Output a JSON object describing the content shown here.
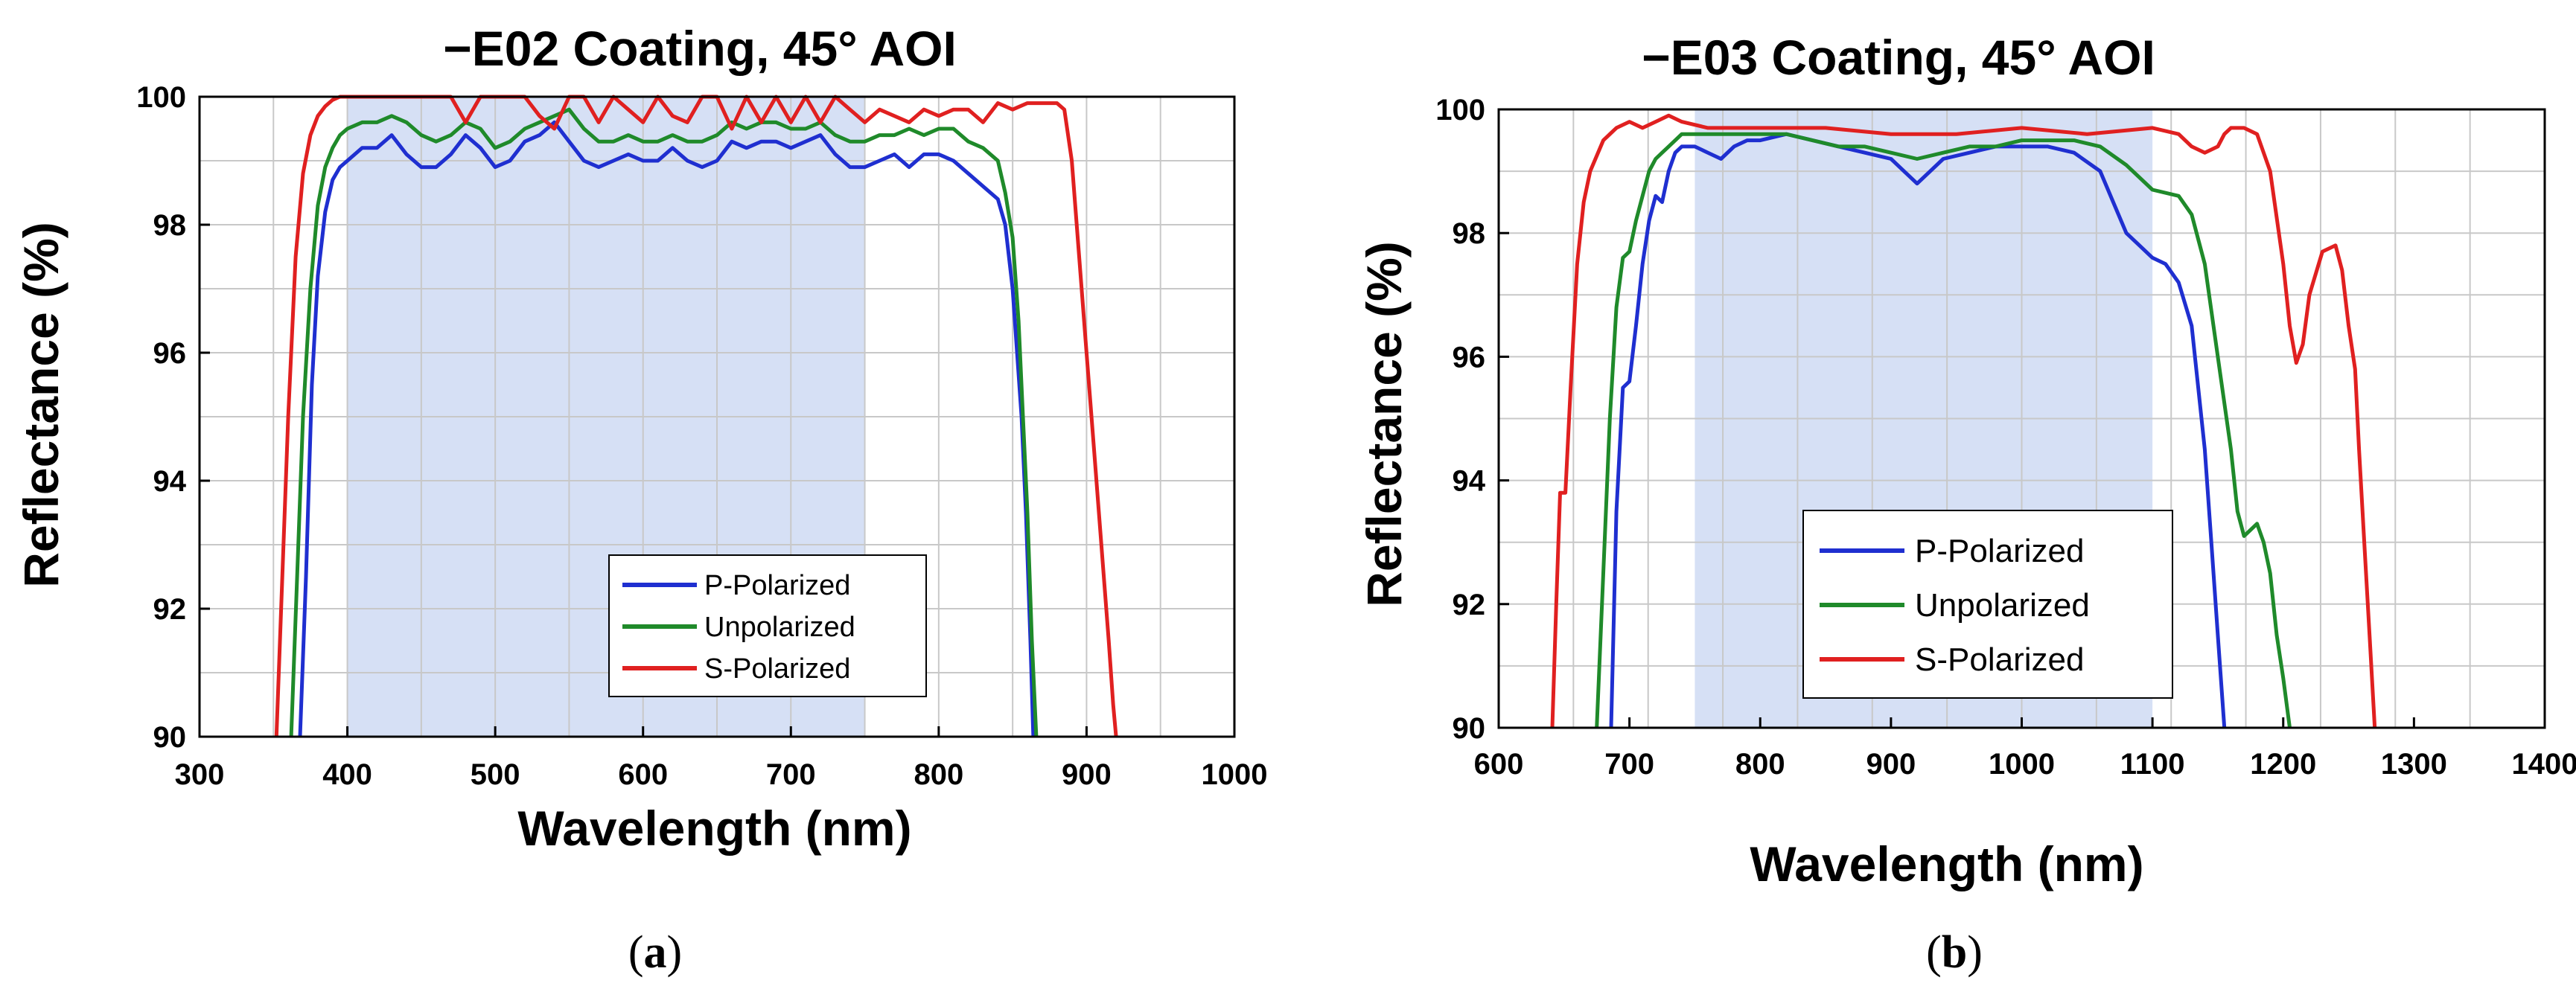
{
  "chart_data": [
    {
      "type": "line",
      "title": "−E02 Coating, 45° AOI",
      "xlabel": "Wavelength (nm)",
      "ylabel": "Reflectance (%)",
      "xlim": [
        300,
        1000
      ],
      "ylim": [
        90,
        100
      ],
      "xticks": [
        300,
        400,
        500,
        600,
        700,
        800,
        900,
        1000
      ],
      "yticks": [
        90,
        92,
        94,
        96,
        98,
        100
      ],
      "grid": true,
      "shaded_band": [
        400,
        750
      ],
      "legend_position": "bottom-center",
      "sublabel_open": "(",
      "sublabel_letter": "a",
      "sublabel_close": ")",
      "series": [
        {
          "name": "P-Polarized",
          "color": "#1f2fd0",
          "x": [
            368,
            372,
            376,
            380,
            385,
            390,
            395,
            400,
            410,
            420,
            430,
            440,
            450,
            460,
            470,
            480,
            490,
            500,
            510,
            520,
            530,
            540,
            550,
            560,
            570,
            580,
            590,
            600,
            610,
            620,
            630,
            640,
            650,
            660,
            670,
            680,
            690,
            700,
            710,
            720,
            730,
            740,
            750,
            760,
            770,
            780,
            790,
            800,
            810,
            820,
            830,
            840,
            845,
            850,
            853,
            856,
            859,
            862,
            864
          ],
          "values": [
            90,
            92.5,
            95.5,
            97.2,
            98.2,
            98.7,
            98.9,
            99.0,
            99.2,
            99.2,
            99.4,
            99.1,
            98.9,
            98.9,
            99.1,
            99.4,
            99.2,
            98.9,
            99.0,
            99.3,
            99.4,
            99.6,
            99.3,
            99.0,
            98.9,
            99.0,
            99.1,
            99.0,
            99.0,
            99.2,
            99.0,
            98.9,
            99.0,
            99.3,
            99.2,
            99.3,
            99.3,
            99.2,
            99.3,
            99.4,
            99.1,
            98.9,
            98.9,
            99.0,
            99.1,
            98.9,
            99.1,
            99.1,
            99.0,
            98.8,
            98.6,
            98.4,
            98.0,
            97.0,
            96.0,
            95.0,
            93.5,
            91.5,
            90
          ]
        },
        {
          "name": "Unpolarized",
          "color": "#1f8a2a",
          "x": [
            362,
            366,
            370,
            375,
            380,
            385,
            390,
            395,
            400,
            410,
            420,
            430,
            440,
            450,
            460,
            470,
            480,
            490,
            500,
            510,
            520,
            530,
            540,
            550,
            560,
            570,
            580,
            590,
            600,
            610,
            620,
            630,
            640,
            650,
            660,
            670,
            680,
            690,
            700,
            710,
            720,
            730,
            740,
            750,
            760,
            770,
            780,
            790,
            800,
            810,
            820,
            830,
            840,
            845,
            850,
            854,
            857,
            860,
            863,
            866
          ],
          "values": [
            90,
            92.5,
            95.0,
            97.0,
            98.3,
            98.9,
            99.2,
            99.4,
            99.5,
            99.6,
            99.6,
            99.7,
            99.6,
            99.4,
            99.3,
            99.4,
            99.6,
            99.5,
            99.2,
            99.3,
            99.5,
            99.6,
            99.7,
            99.8,
            99.5,
            99.3,
            99.3,
            99.4,
            99.3,
            99.3,
            99.4,
            99.3,
            99.3,
            99.4,
            99.6,
            99.5,
            99.6,
            99.6,
            99.5,
            99.5,
            99.6,
            99.4,
            99.3,
            99.3,
            99.4,
            99.4,
            99.5,
            99.4,
            99.5,
            99.5,
            99.3,
            99.2,
            99.0,
            98.5,
            97.8,
            96.5,
            95.0,
            93.5,
            91.5,
            90
          ]
        },
        {
          "name": "S-Polarized",
          "color": "#e02020",
          "x": [
            352,
            356,
            360,
            365,
            370,
            375,
            380,
            385,
            390,
            395,
            400,
            410,
            420,
            440,
            460,
            470,
            480,
            490,
            500,
            510,
            520,
            530,
            540,
            550,
            560,
            570,
            580,
            590,
            600,
            610,
            620,
            630,
            640,
            650,
            660,
            670,
            680,
            690,
            700,
            710,
            720,
            730,
            740,
            750,
            760,
            770,
            780,
            790,
            800,
            810,
            820,
            830,
            840,
            850,
            860,
            870,
            880,
            885,
            890,
            895,
            900,
            905,
            910,
            915,
            918,
            920
          ],
          "values": [
            90,
            92.5,
            95.0,
            97.5,
            98.8,
            99.4,
            99.7,
            99.85,
            99.95,
            100,
            100,
            100,
            100,
            100,
            100,
            100,
            99.6,
            100,
            100,
            100,
            100,
            99.7,
            99.5,
            100,
            100,
            99.6,
            100,
            99.8,
            99.6,
            100,
            99.7,
            99.6,
            100,
            100,
            99.5,
            100,
            99.6,
            100,
            99.6,
            100,
            99.6,
            100,
            99.8,
            99.6,
            99.8,
            99.7,
            99.6,
            99.8,
            99.7,
            99.8,
            99.8,
            99.6,
            99.9,
            99.8,
            99.9,
            99.9,
            99.9,
            99.8,
            99.0,
            97.5,
            96.0,
            94.5,
            93.0,
            91.5,
            90.5,
            90
          ]
        }
      ]
    },
    {
      "type": "line",
      "title": "−E03 Coating, 45° AOI",
      "xlabel": "Wavelength (nm)",
      "ylabel": "Reflectance (%)",
      "xlim": [
        600,
        1400
      ],
      "ylim": [
        90,
        100
      ],
      "xticks": [
        600,
        700,
        800,
        900,
        1000,
        1100,
        1200,
        1300,
        1400
      ],
      "yticks": [
        90,
        92,
        94,
        96,
        98,
        100
      ],
      "grid": true,
      "shaded_band": [
        750,
        1100
      ],
      "legend_position": "bottom-center",
      "sublabel_open": "(",
      "sublabel_letter": "b",
      "sublabel_close": ")",
      "series": [
        {
          "name": "P-Polarized",
          "color": "#1f2fd0",
          "x": [
            686,
            690,
            695,
            700,
            705,
            710,
            715,
            720,
            725,
            730,
            735,
            740,
            745,
            750,
            760,
            770,
            780,
            790,
            800,
            820,
            840,
            860,
            880,
            900,
            910,
            920,
            930,
            940,
            960,
            980,
            1000,
            1020,
            1040,
            1060,
            1070,
            1080,
            1090,
            1100,
            1110,
            1120,
            1130,
            1135,
            1140,
            1145,
            1150,
            1155
          ],
          "values": [
            90,
            93.5,
            95.5,
            95.6,
            96.5,
            97.5,
            98.2,
            98.6,
            98.5,
            99.0,
            99.3,
            99.4,
            99.4,
            99.4,
            99.3,
            99.2,
            99.4,
            99.5,
            99.5,
            99.6,
            99.5,
            99.4,
            99.3,
            99.2,
            99.0,
            98.8,
            99.0,
            99.2,
            99.3,
            99.4,
            99.4,
            99.4,
            99.3,
            99.0,
            98.5,
            98.0,
            97.8,
            97.6,
            97.5,
            97.2,
            96.5,
            95.5,
            94.5,
            93.0,
            91.5,
            90
          ]
        },
        {
          "name": "Unpolarized",
          "color": "#1f8a2a",
          "x": [
            675,
            680,
            685,
            690,
            695,
            700,
            705,
            710,
            715,
            720,
            725,
            730,
            735,
            740,
            750,
            760,
            780,
            800,
            820,
            840,
            860,
            880,
            900,
            920,
            940,
            960,
            980,
            1000,
            1020,
            1040,
            1060,
            1080,
            1100,
            1120,
            1130,
            1140,
            1150,
            1160,
            1165,
            1170,
            1180,
            1185,
            1190,
            1195,
            1200,
            1205
          ],
          "values": [
            90,
            92.5,
            95.0,
            96.8,
            97.6,
            97.7,
            98.2,
            98.6,
            99.0,
            99.2,
            99.3,
            99.4,
            99.5,
            99.6,
            99.6,
            99.6,
            99.6,
            99.6,
            99.6,
            99.5,
            99.4,
            99.4,
            99.3,
            99.2,
            99.3,
            99.4,
            99.4,
            99.5,
            99.5,
            99.5,
            99.4,
            99.1,
            98.7,
            98.6,
            98.3,
            97.5,
            96.0,
            94.5,
            93.5,
            93.1,
            93.3,
            93.0,
            92.5,
            91.5,
            90.8,
            90
          ]
        },
        {
          "name": "S-Polarized",
          "color": "#e02020",
          "x": [
            641,
            644,
            647,
            651,
            655,
            660,
            665,
            670,
            680,
            690,
            700,
            710,
            720,
            730,
            740,
            760,
            800,
            850,
            900,
            950,
            1000,
            1050,
            1100,
            1120,
            1130,
            1140,
            1150,
            1155,
            1160,
            1170,
            1180,
            1190,
            1200,
            1205,
            1210,
            1215,
            1220,
            1230,
            1240,
            1245,
            1250,
            1255,
            1258,
            1262,
            1266,
            1270
          ],
          "values": [
            90,
            92.0,
            93.8,
            93.8,
            95.5,
            97.5,
            98.5,
            99.0,
            99.5,
            99.7,
            99.8,
            99.7,
            99.8,
            99.9,
            99.8,
            99.7,
            99.7,
            99.7,
            99.6,
            99.6,
            99.7,
            99.6,
            99.7,
            99.6,
            99.4,
            99.3,
            99.4,
            99.6,
            99.7,
            99.7,
            99.6,
            99.0,
            97.5,
            96.5,
            95.9,
            96.2,
            97.0,
            97.7,
            97.8,
            97.4,
            96.5,
            95.8,
            94.5,
            93.0,
            91.5,
            90
          ]
        }
      ]
    }
  ]
}
